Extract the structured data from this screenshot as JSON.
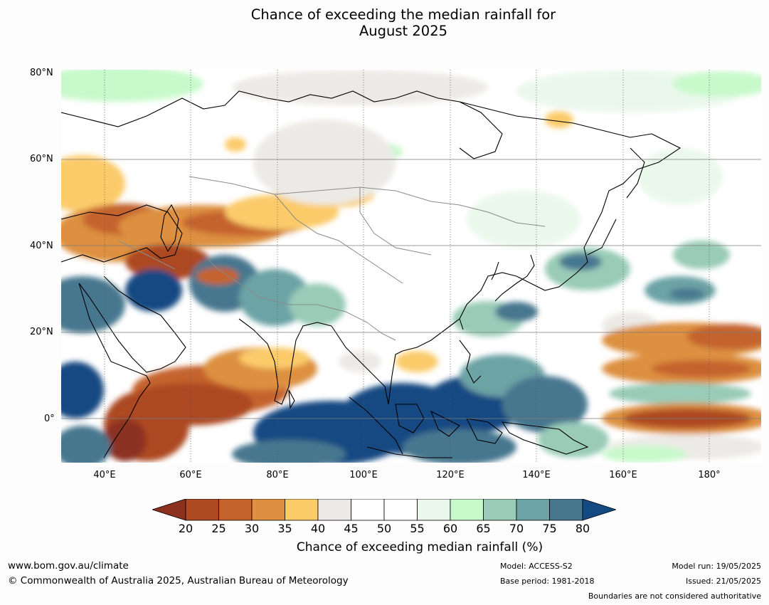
{
  "title_line1": "Chance of exceeding the median rainfall for",
  "title_line2": "August 2025",
  "lat_labels": [
    "80°N",
    "60°N",
    "40°N",
    "20°N",
    "0°"
  ],
  "lon_labels": [
    "40°E",
    "60°E",
    "80°E",
    "100°E",
    "120°E",
    "140°E",
    "160°E",
    "180°"
  ],
  "colorbar": {
    "ticks": [
      "20",
      "25",
      "30",
      "35",
      "40",
      "45",
      "50",
      "55",
      "60",
      "65",
      "70",
      "75",
      "80"
    ],
    "colors": [
      "#ad4a22",
      "#c5632f",
      "#dd9041",
      "#fbcb6a",
      "#eceae6",
      "#ffffff",
      "#ffffff",
      "#eaf8eb",
      "#c8f9cb",
      "#99cbb8",
      "#6ca3a5",
      "#46778f"
    ],
    "low_color": "#8c3020",
    "high_color": "#134a82",
    "label": "Chance of exceeding median rainfall (%)"
  },
  "footer": {
    "website": "www.bom.gov.au/climate",
    "copyright": "© Commonwealth of Australia 2025, Australian Bureau of Meteorology",
    "model": "Model: ACCESS-S2",
    "base_period": "Base period: 1981-2018",
    "model_run": "Model run: 19/05/2025",
    "issued": "Issued: 21/05/2025",
    "disclaimer": "Boundaries are not considered authoritative"
  }
}
